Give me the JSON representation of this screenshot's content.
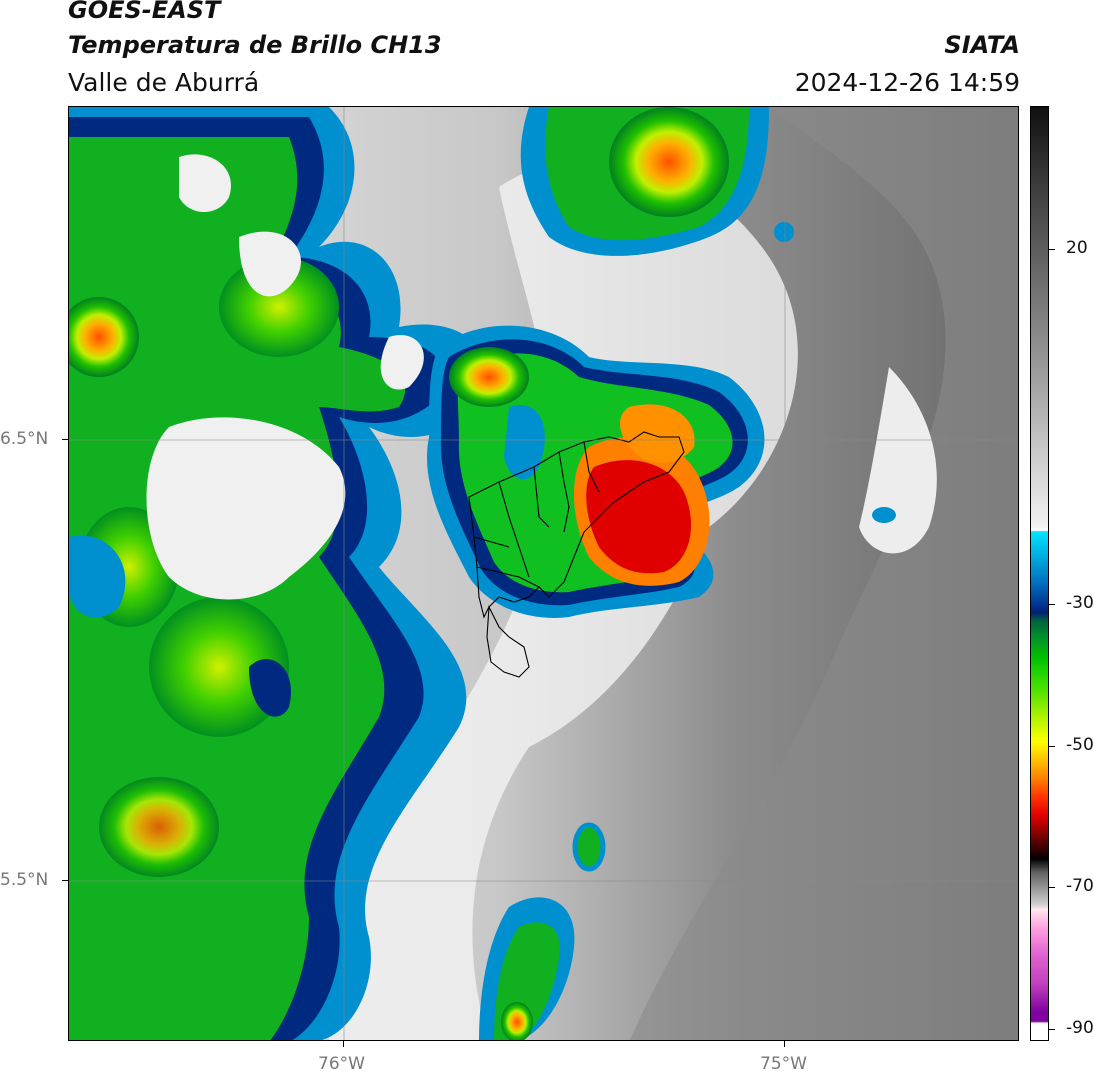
{
  "header": {
    "satellite": "GOES-EAST",
    "product": "Temperatura de Brillo CH13",
    "region": "Valle de Aburrá",
    "organization": "SIATA",
    "timestamp": "2024-12-26 14:59"
  },
  "map": {
    "lat_labels": [
      "6.5°N",
      "5.5°N"
    ],
    "lon_labels": [
      "76°W",
      "75°W"
    ]
  },
  "colorbar": {
    "tick_labels": [
      "20",
      "-30",
      "-50",
      "-70",
      "-90"
    ]
  }
}
